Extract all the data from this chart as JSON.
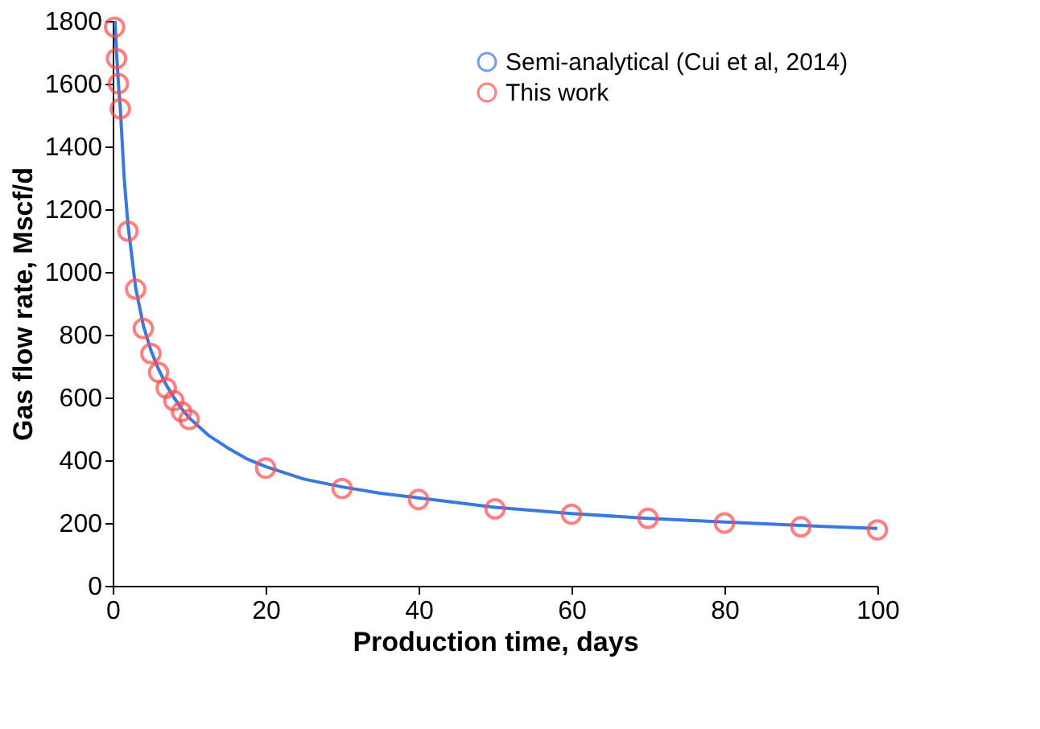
{
  "chart_data": {
    "type": "scatter",
    "xlabel": "Production time, days",
    "ylabel": "Gas flow rate, Mscf/d",
    "xlim": [
      0,
      100
    ],
    "xticks": [
      0,
      20,
      40,
      60,
      80,
      100
    ],
    "ylim": [
      0,
      1800
    ],
    "yticks": [
      0,
      200,
      400,
      600,
      800,
      1000,
      1200,
      1400,
      1600,
      1800
    ],
    "grid": false,
    "legend": "top right",
    "series": [
      {
        "name": "Semi-analytical (Cui et al, 2014)",
        "type": "line",
        "color": "#3a78e0",
        "line_style": "solid",
        "marker": "none",
        "x": [
          0.3,
          0.5,
          0.75,
          1,
          1.5,
          2,
          3,
          4,
          5,
          6,
          7,
          8,
          9,
          10,
          12.5,
          15,
          17.5,
          20,
          25,
          30,
          35,
          40,
          50,
          60,
          70,
          80,
          90,
          100
        ],
        "values": [
          1800,
          1700,
          1600,
          1520,
          1300,
          1150,
          950,
          830,
          750,
          690,
          640,
          600,
          565,
          535,
          480,
          440,
          405,
          380,
          340,
          315,
          295,
          280,
          250,
          230,
          215,
          203,
          192,
          183
        ]
      },
      {
        "name": "This work",
        "type": "scatter",
        "color": "#ff4d4d",
        "marker": "circle",
        "x": [
          0.25,
          0.5,
          0.75,
          1,
          2,
          3,
          4,
          5,
          6,
          7,
          8,
          9,
          10,
          20,
          30,
          40,
          50,
          60,
          70,
          80,
          90,
          100
        ],
        "values": [
          1780,
          1680,
          1600,
          1520,
          1130,
          945,
          820,
          740,
          680,
          630,
          590,
          555,
          530,
          375,
          310,
          275,
          245,
          228,
          215,
          200,
          188,
          178
        ]
      }
    ]
  }
}
